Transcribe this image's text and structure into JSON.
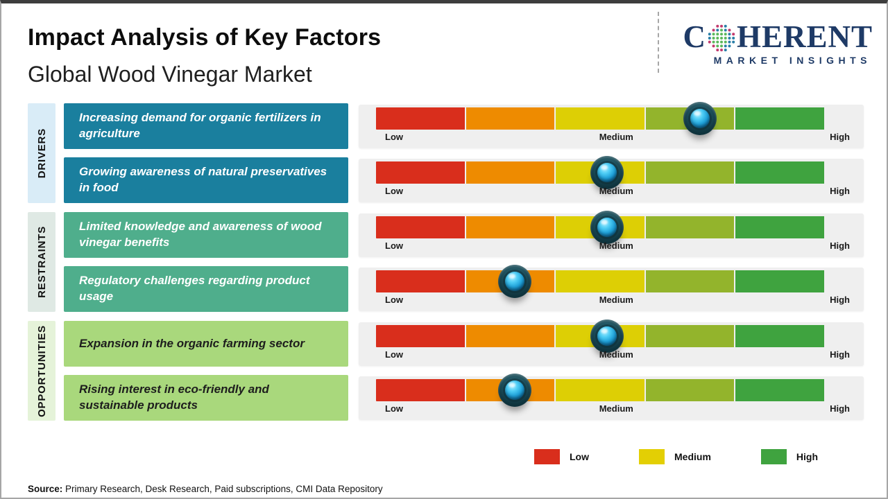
{
  "header": {
    "title": "Impact Analysis of Key Factors",
    "subtitle": "Global Wood Vinegar Market"
  },
  "logo": {
    "brand_c": "C",
    "brand_rest": "HERENT",
    "tagline": "MARKET INSIGHTS",
    "navy": "#1e3a66"
  },
  "scale": {
    "low": "Low",
    "medium": "Medium",
    "high": "High",
    "segment_colors": [
      "#d92e1c",
      "#ee8b00",
      "#ddcf05",
      "#93b42c",
      "#3fa33f"
    ]
  },
  "groups": [
    {
      "name": "DRIVERS",
      "strip_color": "#d9ecf7",
      "box_color": "#1a7f9e",
      "text_color": "#ffffff",
      "factors": [
        {
          "label": "Increasing demand for organic fertilizers in agriculture",
          "impact": "Medium-High",
          "position_pct": 72.3
        },
        {
          "label": "Growing awareness of natural preservatives in food",
          "impact": "Medium",
          "position_pct": 51.5
        }
      ]
    },
    {
      "name": "RESTRAINTS",
      "strip_color": "#dfe9e4",
      "box_color": "#4fae8c",
      "text_color": "#ffffff",
      "factors": [
        {
          "label": "Limited knowledge and awareness of wood vinegar benefits",
          "impact": "Medium",
          "position_pct": 51.5
        },
        {
          "label": "Regulatory challenges regarding product usage",
          "impact": "Low-Medium",
          "position_pct": 31.0
        }
      ]
    },
    {
      "name": "OPPORTUNITIES",
      "strip_color": "#e5f3d9",
      "box_color": "#a9d87c",
      "text_color": "#1d1d1d",
      "factors": [
        {
          "label": "Expansion in the organic farming sector",
          "impact": "Medium",
          "position_pct": 51.5
        },
        {
          "label": "Rising interest in eco-friendly and sustainable products",
          "impact": "Low-Medium",
          "position_pct": 31.0
        }
      ]
    }
  ],
  "legend": {
    "items": [
      {
        "label": "Low",
        "color": "#d92e1c"
      },
      {
        "label": "Medium",
        "color": "#e3cf04"
      },
      {
        "label": "High",
        "color": "#3fa33f"
      }
    ]
  },
  "source": {
    "prefix": "Source:",
    "text": " Primary Research, Desk Research, Paid subscriptions, CMI Data Repository"
  },
  "chart_data": {
    "type": "table",
    "title": "Impact Analysis of Key Factors",
    "subtitle": "Global Wood Vinegar Market",
    "scale": [
      "Low",
      "Medium",
      "High"
    ],
    "scale_range_pct": [
      0,
      100
    ],
    "rows": [
      {
        "group": "Drivers",
        "factor": "Increasing demand for organic fertilizers in agriculture",
        "impact": "Medium-High",
        "position_pct": 72.3
      },
      {
        "group": "Drivers",
        "factor": "Growing awareness of natural preservatives in food",
        "impact": "Medium",
        "position_pct": 51.5
      },
      {
        "group": "Restraints",
        "factor": "Limited knowledge and awareness of wood vinegar benefits",
        "impact": "Medium",
        "position_pct": 51.5
      },
      {
        "group": "Restraints",
        "factor": "Regulatory challenges regarding product usage",
        "impact": "Low-Medium",
        "position_pct": 31.0
      },
      {
        "group": "Opportunities",
        "factor": "Expansion in the organic farming sector",
        "impact": "Medium",
        "position_pct": 51.5
      },
      {
        "group": "Opportunities",
        "factor": "Rising interest in eco-friendly and sustainable products",
        "impact": "Low-Medium",
        "position_pct": 31.0
      }
    ],
    "legend": [
      "Low",
      "Medium",
      "High"
    ],
    "legend_position": "bottom-right"
  }
}
